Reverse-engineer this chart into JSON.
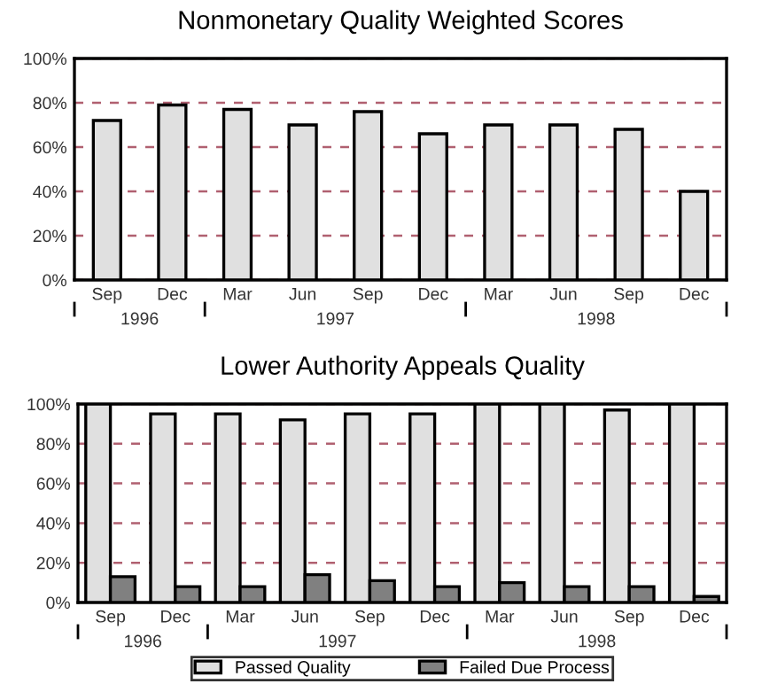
{
  "chart_data": [
    {
      "type": "bar",
      "title": "Nonmonetary Quality Weighted Scores",
      "categories": [
        "Sep",
        "Dec",
        "Mar",
        "Jun",
        "Sep",
        "Dec",
        "Mar",
        "Jun",
        "Sep",
        "Dec"
      ],
      "series": [
        {
          "color": "#e0e0e0",
          "values": [
            72,
            79,
            77,
            70,
            76,
            66,
            70,
            70,
            68,
            40
          ]
        }
      ],
      "ylim": [
        0,
        100
      ],
      "yticks": [
        {
          "value": 0,
          "label": "0%"
        },
        {
          "value": 20,
          "label": "20%"
        },
        {
          "value": 40,
          "label": "40%"
        },
        {
          "value": 60,
          "label": "60%"
        },
        {
          "value": 80,
          "label": "80%"
        },
        {
          "value": 100,
          "label": "100%"
        }
      ],
      "grid": "y",
      "annotations": [
        "1996",
        "1997",
        "1998"
      ]
    },
    {
      "type": "bar",
      "title": "Lower Authority Appeals Quality",
      "categories": [
        "Sep",
        "Dec",
        "Mar",
        "Jun",
        "Sep",
        "Dec",
        "Mar",
        "Jun",
        "Sep",
        "Dec"
      ],
      "series": [
        {
          "name": "Passed Quality",
          "color": "#e0e0e0",
          "values": [
            100,
            95,
            95,
            92,
            95,
            95,
            100,
            100,
            97,
            100
          ]
        },
        {
          "name": "Failed Due Process",
          "color": "#808080",
          "values": [
            13,
            8,
            8,
            14,
            11,
            8,
            10,
            8,
            8,
            3
          ]
        }
      ],
      "ylim": [
        0,
        100
      ],
      "yticks": [
        {
          "value": 0,
          "label": "0%"
        },
        {
          "value": 20,
          "label": "20%"
        },
        {
          "value": 40,
          "label": "40%"
        },
        {
          "value": 60,
          "label": "60%"
        },
        {
          "value": 80,
          "label": "80%"
        },
        {
          "value": 100,
          "label": "100%"
        }
      ],
      "grid": "y",
      "legend": "bottom",
      "annotations": [
        "1996",
        "1997",
        "1998"
      ]
    }
  ]
}
